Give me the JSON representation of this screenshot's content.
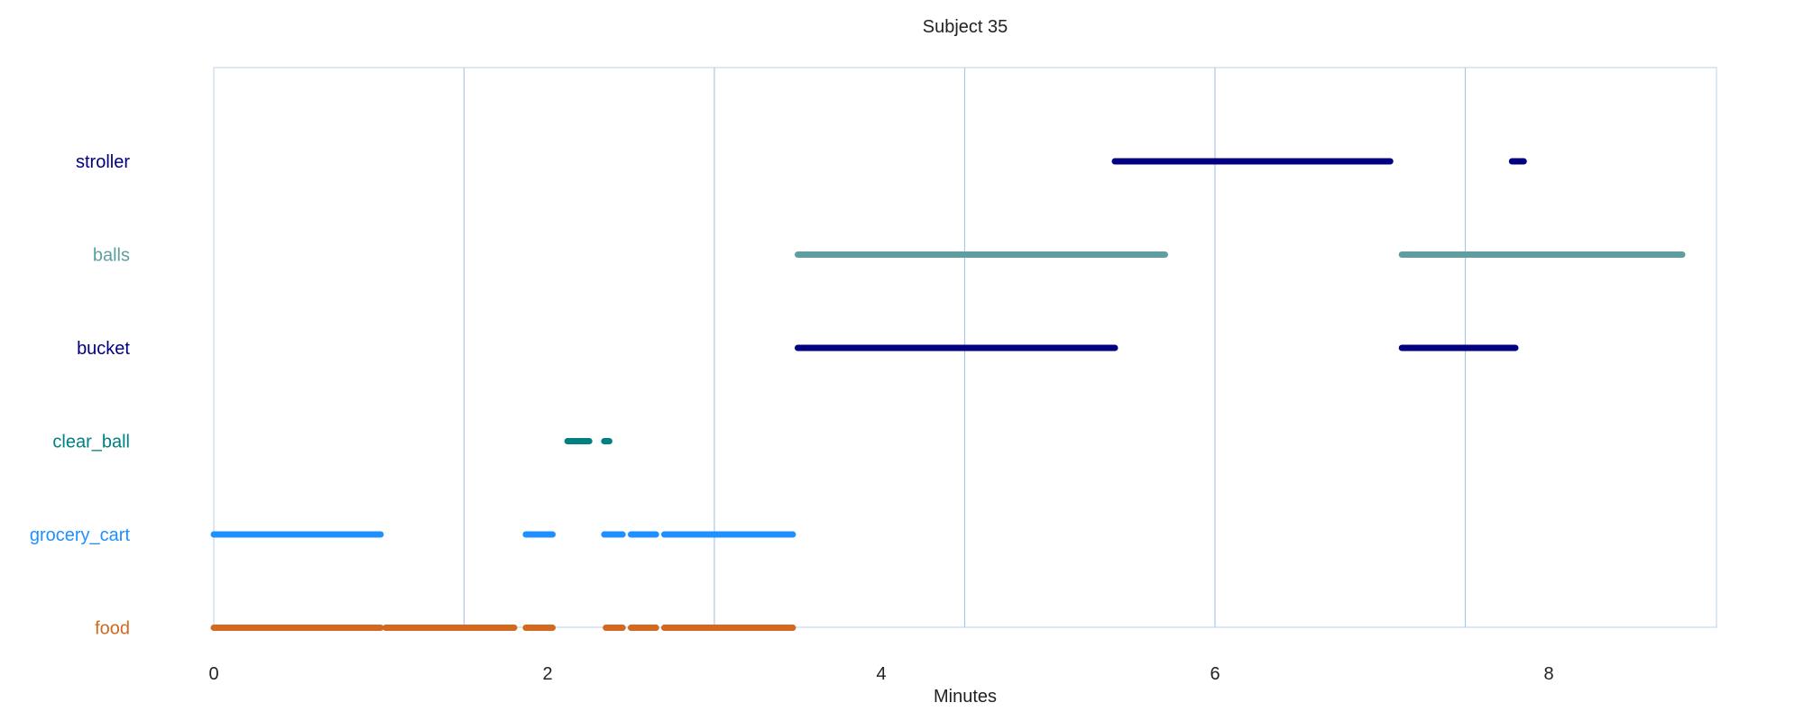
{
  "chart_data": {
    "type": "timeline",
    "title": "Subject 35",
    "xlabel": "Minutes",
    "xlim": [
      0,
      9
    ],
    "xticks": [
      0,
      2,
      4,
      6,
      8
    ],
    "vertical_gridlines": [
      1.5,
      3,
      4.5,
      6,
      7.5
    ],
    "categories": [
      "stroller",
      "balls",
      "bucket",
      "clear_ball",
      "grocery_cart",
      "food"
    ],
    "colors": {
      "stroller": "#000080",
      "balls": "#5f9ea0",
      "bucket": "#000080",
      "clear_ball": "#008080",
      "grocery_cart": "#1e90ff",
      "food": "#d2691e",
      "grid": "#a8c8e8",
      "frame": "#b8d0ea"
    },
    "series": [
      {
        "category": "stroller",
        "intervals": [
          [
            5.4,
            7.05
          ],
          [
            7.78,
            7.85
          ]
        ]
      },
      {
        "category": "balls",
        "intervals": [
          [
            3.5,
            5.7
          ],
          [
            7.12,
            8.8
          ]
        ]
      },
      {
        "category": "bucket",
        "intervals": [
          [
            3.5,
            5.4
          ],
          [
            7.12,
            7.8
          ]
        ]
      },
      {
        "category": "clear_ball",
        "intervals": [
          [
            2.12,
            2.25
          ],
          [
            2.34,
            2.37
          ]
        ]
      },
      {
        "category": "grocery_cart",
        "intervals": [
          [
            0,
            1.0
          ],
          [
            1.87,
            2.03
          ],
          [
            2.34,
            2.45
          ],
          [
            2.5,
            2.65
          ],
          [
            2.7,
            3.47
          ]
        ]
      },
      {
        "category": "food",
        "intervals": [
          [
            0,
            1.0
          ],
          [
            1.03,
            1.8
          ],
          [
            1.87,
            2.03
          ],
          [
            2.35,
            2.45
          ],
          [
            2.5,
            2.65
          ],
          [
            2.7,
            3.47
          ]
        ]
      }
    ]
  }
}
